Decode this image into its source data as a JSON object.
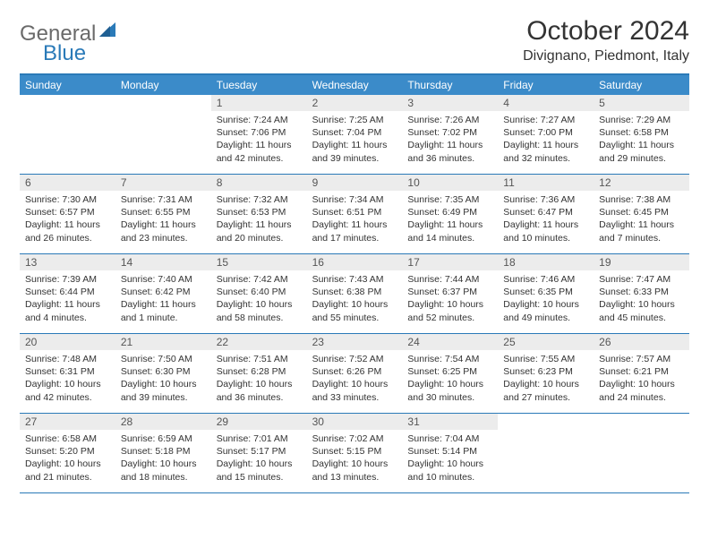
{
  "brand": {
    "part1": "General",
    "part2": "Blue"
  },
  "title": "October 2024",
  "location": "Divignano, Piedmont, Italy",
  "colors": {
    "header_bg": "#3b8bc9",
    "rule": "#2a7ab8",
    "daynum_bg": "#ececec"
  },
  "weekdays": [
    "Sunday",
    "Monday",
    "Tuesday",
    "Wednesday",
    "Thursday",
    "Friday",
    "Saturday"
  ],
  "weeks": [
    [
      {
        "n": "",
        "sunrise": "",
        "sunset": "",
        "daylight": ""
      },
      {
        "n": "",
        "sunrise": "",
        "sunset": "",
        "daylight": ""
      },
      {
        "n": "1",
        "sunrise": "Sunrise: 7:24 AM",
        "sunset": "Sunset: 7:06 PM",
        "daylight": "Daylight: 11 hours and 42 minutes."
      },
      {
        "n": "2",
        "sunrise": "Sunrise: 7:25 AM",
        "sunset": "Sunset: 7:04 PM",
        "daylight": "Daylight: 11 hours and 39 minutes."
      },
      {
        "n": "3",
        "sunrise": "Sunrise: 7:26 AM",
        "sunset": "Sunset: 7:02 PM",
        "daylight": "Daylight: 11 hours and 36 minutes."
      },
      {
        "n": "4",
        "sunrise": "Sunrise: 7:27 AM",
        "sunset": "Sunset: 7:00 PM",
        "daylight": "Daylight: 11 hours and 32 minutes."
      },
      {
        "n": "5",
        "sunrise": "Sunrise: 7:29 AM",
        "sunset": "Sunset: 6:58 PM",
        "daylight": "Daylight: 11 hours and 29 minutes."
      }
    ],
    [
      {
        "n": "6",
        "sunrise": "Sunrise: 7:30 AM",
        "sunset": "Sunset: 6:57 PM",
        "daylight": "Daylight: 11 hours and 26 minutes."
      },
      {
        "n": "7",
        "sunrise": "Sunrise: 7:31 AM",
        "sunset": "Sunset: 6:55 PM",
        "daylight": "Daylight: 11 hours and 23 minutes."
      },
      {
        "n": "8",
        "sunrise": "Sunrise: 7:32 AM",
        "sunset": "Sunset: 6:53 PM",
        "daylight": "Daylight: 11 hours and 20 minutes."
      },
      {
        "n": "9",
        "sunrise": "Sunrise: 7:34 AM",
        "sunset": "Sunset: 6:51 PM",
        "daylight": "Daylight: 11 hours and 17 minutes."
      },
      {
        "n": "10",
        "sunrise": "Sunrise: 7:35 AM",
        "sunset": "Sunset: 6:49 PM",
        "daylight": "Daylight: 11 hours and 14 minutes."
      },
      {
        "n": "11",
        "sunrise": "Sunrise: 7:36 AM",
        "sunset": "Sunset: 6:47 PM",
        "daylight": "Daylight: 11 hours and 10 minutes."
      },
      {
        "n": "12",
        "sunrise": "Sunrise: 7:38 AM",
        "sunset": "Sunset: 6:45 PM",
        "daylight": "Daylight: 11 hours and 7 minutes."
      }
    ],
    [
      {
        "n": "13",
        "sunrise": "Sunrise: 7:39 AM",
        "sunset": "Sunset: 6:44 PM",
        "daylight": "Daylight: 11 hours and 4 minutes."
      },
      {
        "n": "14",
        "sunrise": "Sunrise: 7:40 AM",
        "sunset": "Sunset: 6:42 PM",
        "daylight": "Daylight: 11 hours and 1 minute."
      },
      {
        "n": "15",
        "sunrise": "Sunrise: 7:42 AM",
        "sunset": "Sunset: 6:40 PM",
        "daylight": "Daylight: 10 hours and 58 minutes."
      },
      {
        "n": "16",
        "sunrise": "Sunrise: 7:43 AM",
        "sunset": "Sunset: 6:38 PM",
        "daylight": "Daylight: 10 hours and 55 minutes."
      },
      {
        "n": "17",
        "sunrise": "Sunrise: 7:44 AM",
        "sunset": "Sunset: 6:37 PM",
        "daylight": "Daylight: 10 hours and 52 minutes."
      },
      {
        "n": "18",
        "sunrise": "Sunrise: 7:46 AM",
        "sunset": "Sunset: 6:35 PM",
        "daylight": "Daylight: 10 hours and 49 minutes."
      },
      {
        "n": "19",
        "sunrise": "Sunrise: 7:47 AM",
        "sunset": "Sunset: 6:33 PM",
        "daylight": "Daylight: 10 hours and 45 minutes."
      }
    ],
    [
      {
        "n": "20",
        "sunrise": "Sunrise: 7:48 AM",
        "sunset": "Sunset: 6:31 PM",
        "daylight": "Daylight: 10 hours and 42 minutes."
      },
      {
        "n": "21",
        "sunrise": "Sunrise: 7:50 AM",
        "sunset": "Sunset: 6:30 PM",
        "daylight": "Daylight: 10 hours and 39 minutes."
      },
      {
        "n": "22",
        "sunrise": "Sunrise: 7:51 AM",
        "sunset": "Sunset: 6:28 PM",
        "daylight": "Daylight: 10 hours and 36 minutes."
      },
      {
        "n": "23",
        "sunrise": "Sunrise: 7:52 AM",
        "sunset": "Sunset: 6:26 PM",
        "daylight": "Daylight: 10 hours and 33 minutes."
      },
      {
        "n": "24",
        "sunrise": "Sunrise: 7:54 AM",
        "sunset": "Sunset: 6:25 PM",
        "daylight": "Daylight: 10 hours and 30 minutes."
      },
      {
        "n": "25",
        "sunrise": "Sunrise: 7:55 AM",
        "sunset": "Sunset: 6:23 PM",
        "daylight": "Daylight: 10 hours and 27 minutes."
      },
      {
        "n": "26",
        "sunrise": "Sunrise: 7:57 AM",
        "sunset": "Sunset: 6:21 PM",
        "daylight": "Daylight: 10 hours and 24 minutes."
      }
    ],
    [
      {
        "n": "27",
        "sunrise": "Sunrise: 6:58 AM",
        "sunset": "Sunset: 5:20 PM",
        "daylight": "Daylight: 10 hours and 21 minutes."
      },
      {
        "n": "28",
        "sunrise": "Sunrise: 6:59 AM",
        "sunset": "Sunset: 5:18 PM",
        "daylight": "Daylight: 10 hours and 18 minutes."
      },
      {
        "n": "29",
        "sunrise": "Sunrise: 7:01 AM",
        "sunset": "Sunset: 5:17 PM",
        "daylight": "Daylight: 10 hours and 15 minutes."
      },
      {
        "n": "30",
        "sunrise": "Sunrise: 7:02 AM",
        "sunset": "Sunset: 5:15 PM",
        "daylight": "Daylight: 10 hours and 13 minutes."
      },
      {
        "n": "31",
        "sunrise": "Sunrise: 7:04 AM",
        "sunset": "Sunset: 5:14 PM",
        "daylight": "Daylight: 10 hours and 10 minutes."
      },
      {
        "n": "",
        "sunrise": "",
        "sunset": "",
        "daylight": ""
      },
      {
        "n": "",
        "sunrise": "",
        "sunset": "",
        "daylight": ""
      }
    ]
  ]
}
